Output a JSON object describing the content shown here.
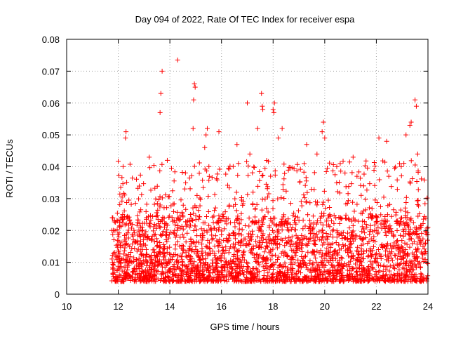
{
  "chart_data": {
    "type": "scatter",
    "title": "Day 094 of 2022, Rate Of TEC Index for receiver espa",
    "xlabel": "GPS time / hours",
    "ylabel": "ROTI / TECUs",
    "xlim": [
      10,
      24
    ],
    "ylim": [
      0,
      0.08
    ],
    "x_ticks": [
      10,
      12,
      14,
      16,
      18,
      20,
      22,
      24
    ],
    "x_tick_labels": [
      "10",
      "12",
      "14",
      "16",
      "18",
      "20",
      "22",
      "24"
    ],
    "y_ticks": [
      0,
      0.01,
      0.02,
      0.03,
      0.04,
      0.05,
      0.06,
      0.07,
      0.08
    ],
    "y_tick_labels": [
      "0",
      "0.01",
      "0.02",
      "0.03",
      "0.04",
      "0.05",
      "0.06",
      "0.07",
      "0.08"
    ],
    "grid": true,
    "marker": "+",
    "series": [
      {
        "name": "ROTI espa",
        "color": "#ff0000",
        "x_start": 11.75,
        "x_end": 24.0,
        "bulk_range": [
          0.004,
          0.025
        ],
        "notable_points": [
          {
            "x": 13.7,
            "y": 0.07
          },
          {
            "x": 14.3,
            "y": 0.0735
          },
          {
            "x": 13.65,
            "y": 0.063
          },
          {
            "x": 13.62,
            "y": 0.057
          },
          {
            "x": 14.95,
            "y": 0.066
          },
          {
            "x": 14.98,
            "y": 0.065
          },
          {
            "x": 14.92,
            "y": 0.061
          },
          {
            "x": 14.9,
            "y": 0.052
          },
          {
            "x": 12.3,
            "y": 0.051
          },
          {
            "x": 12.28,
            "y": 0.049
          },
          {
            "x": 15.45,
            "y": 0.052
          },
          {
            "x": 15.4,
            "y": 0.05
          },
          {
            "x": 15.35,
            "y": 0.046
          },
          {
            "x": 15.9,
            "y": 0.051
          },
          {
            "x": 17.0,
            "y": 0.06
          },
          {
            "x": 17.55,
            "y": 0.063
          },
          {
            "x": 17.58,
            "y": 0.059
          },
          {
            "x": 17.6,
            "y": 0.058
          },
          {
            "x": 18.05,
            "y": 0.06
          },
          {
            "x": 18.0,
            "y": 0.058
          },
          {
            "x": 18.03,
            "y": 0.057
          },
          {
            "x": 17.4,
            "y": 0.052
          },
          {
            "x": 18.35,
            "y": 0.052
          },
          {
            "x": 19.95,
            "y": 0.054
          },
          {
            "x": 19.9,
            "y": 0.051
          },
          {
            "x": 20.0,
            "y": 0.049
          },
          {
            "x": 22.1,
            "y": 0.049
          },
          {
            "x": 22.4,
            "y": 0.048
          },
          {
            "x": 23.3,
            "y": 0.053
          },
          {
            "x": 23.35,
            "y": 0.054
          },
          {
            "x": 23.5,
            "y": 0.061
          },
          {
            "x": 23.55,
            "y": 0.059
          },
          {
            "x": 23.15,
            "y": 0.05
          },
          {
            "x": 23.6,
            "y": 0.044
          },
          {
            "x": 13.2,
            "y": 0.043
          },
          {
            "x": 13.9,
            "y": 0.042
          },
          {
            "x": 16.6,
            "y": 0.047
          },
          {
            "x": 17.1,
            "y": 0.044
          },
          {
            "x": 18.2,
            "y": 0.049
          },
          {
            "x": 19.3,
            "y": 0.047
          },
          {
            "x": 19.7,
            "y": 0.044
          },
          {
            "x": 20.6,
            "y": 0.041
          },
          {
            "x": 21.1,
            "y": 0.043
          },
          {
            "x": 21.25,
            "y": 0.037
          },
          {
            "x": 22.9,
            "y": 0.041
          }
        ]
      }
    ]
  }
}
